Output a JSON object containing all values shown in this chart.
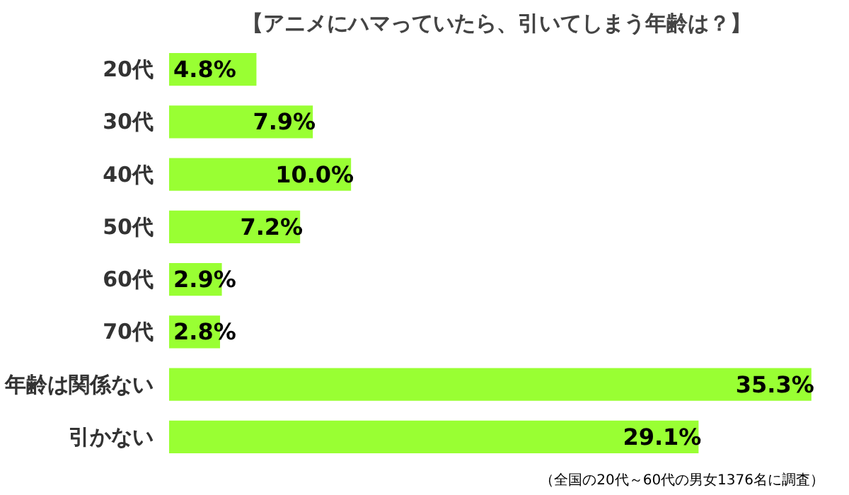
{
  "chart_data": {
    "type": "bar",
    "orientation": "horizontal",
    "title": "【アニメにハマっていたら、引いてしまう年齢は？】",
    "categories": [
      "20代",
      "30代",
      "40代",
      "50代",
      "60代",
      "70代",
      "年齢は関係ない",
      "引かない"
    ],
    "values": [
      4.8,
      7.9,
      10.0,
      7.2,
      2.9,
      2.8,
      35.3,
      29.1
    ],
    "value_labels": [
      "4.8%",
      "7.9%",
      "10.0%",
      "7.2%",
      "2.9%",
      "2.8%",
      "35.3%",
      "29.1%"
    ],
    "color": "#99ff33",
    "grid": false,
    "annotations": [
      "（全国の20代～60代の男女1376名に調査）"
    ]
  }
}
